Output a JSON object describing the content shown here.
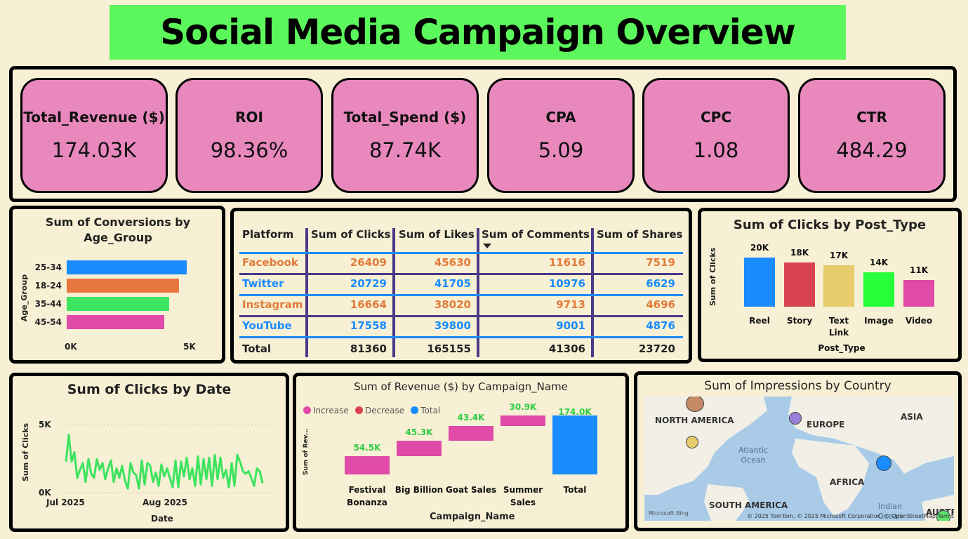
{
  "title": "Social Media Campaign Overview",
  "kpis": [
    {
      "label": "Total_Revenue ($)",
      "value": "174.03K"
    },
    {
      "label": "ROI",
      "value": "98.36%"
    },
    {
      "label": "Total_Spend ($)",
      "value": "87.74K"
    },
    {
      "label": "CPA",
      "value": "5.09"
    },
    {
      "label": "CPC",
      "value": "1.08"
    },
    {
      "label": "CTR",
      "value": "484.29"
    }
  ],
  "age_chart": {
    "title": "Sum of Conversions by Age_Group",
    "ylabel": "Age_Group",
    "ticks": [
      "0K",
      "5K"
    ]
  },
  "platform_table": {
    "headers": [
      "Platform",
      "Sum of Clicks",
      "Sum of Likes",
      "Sum of Comments",
      "Sum of Shares"
    ],
    "rows": [
      [
        "Facebook",
        "26409",
        "45630",
        "11616",
        "7519"
      ],
      [
        "Twitter",
        "20729",
        "41705",
        "10976",
        "6629"
      ],
      [
        "Instagram",
        "16664",
        "38020",
        "9713",
        "4696"
      ],
      [
        "YouTube",
        "17558",
        "39800",
        "9001",
        "4876"
      ]
    ],
    "total": [
      "Total",
      "81360",
      "165155",
      "41306",
      "23720"
    ],
    "row_colors": [
      "#e07b39",
      "#1a8cff",
      "#e07b39",
      "#1a8cff"
    ]
  },
  "post_chart": {
    "title": "Sum of Clicks by Post_Type",
    "ylabel": "Sum of Clicks",
    "xlabel": "Post_Type",
    "value_labels": [
      "20K",
      "18K",
      "17K",
      "14K",
      "11K"
    ],
    "cat_labels": [
      "Reel",
      "Story",
      "Text Link",
      "Image",
      "Video"
    ]
  },
  "date_chart": {
    "title": "Sum of Clicks by Date",
    "ylabel": "Sum of Clicks",
    "xlabel": "Date",
    "y_ticks": [
      "5K",
      "0K"
    ],
    "x_ticks": [
      "Jul 2025",
      "Aug 2025"
    ]
  },
  "waterfall_chart": {
    "title": "Sum of Revenue ($) by Campaign_Name",
    "ylabel": "Sum of Rev...",
    "xlabel": "Campaign_Name",
    "legend": [
      {
        "label": "Increase",
        "color": "#e04aa8"
      },
      {
        "label": "Decrease",
        "color": "#d9434f"
      },
      {
        "label": "Total",
        "color": "#1a8cff"
      }
    ],
    "value_labels": [
      "54.5K",
      "45.3K",
      "43.4K",
      "30.9K",
      "174.0K"
    ],
    "cat_labels": [
      "Festival Bonanza",
      "Big Billion",
      "Goat Sales",
      "Summer Sales",
      "Total"
    ]
  },
  "map": {
    "title": "Sum of Impressions by Country",
    "regions": [
      "NORTH AMERICA",
      "EUROPE",
      "ASIA",
      "AFRICA",
      "SOUTH AMERICA",
      "AUSTR"
    ],
    "oceans": [
      "Atlantic Ocean",
      "Indian Ocean"
    ],
    "bing": "Microsoft Bing",
    "credit": "© 2025 TomTom, © 2025 Microsoft Corporation, © OpenStreetMap  Terms"
  },
  "chart_data": [
    {
      "type": "bar",
      "orientation": "horizontal",
      "title": "Sum of Conversions by Age_Group",
      "ylabel": "Age_Group",
      "categories": [
        "25-34",
        "18-24",
        "35-44",
        "45-54"
      ],
      "values": [
        4900,
        4600,
        4200,
        4000
      ],
      "colors": [
        "#1a8cff",
        "#e8773f",
        "#3ee35f",
        "#e04aa8"
      ],
      "xlim": [
        0,
        5000
      ]
    },
    {
      "type": "bar",
      "title": "Sum of Clicks by Post_Type",
      "xlabel": "Post_Type",
      "ylabel": "Sum of Clicks",
      "categories": [
        "Reel",
        "Story",
        "Text Link",
        "Image",
        "Video"
      ],
      "values": [
        20000,
        18000,
        17000,
        14000,
        11000
      ],
      "colors": [
        "#1a8cff",
        "#d9434f",
        "#e6cc6a",
        "#27ff3a",
        "#e04aa8"
      ]
    },
    {
      "type": "line",
      "title": "Sum of Clicks by Date",
      "xlabel": "Date",
      "ylabel": "Sum of Clicks",
      "x_range": [
        "Jul 2025",
        "Aug 2025"
      ],
      "ylim": [
        0,
        5000
      ],
      "color": "#3ee35f",
      "values": [
        2300,
        4300,
        2300,
        3000,
        1100,
        1700,
        2200,
        800,
        2500,
        1400,
        1100,
        2500,
        1700,
        2200,
        1000,
        1800,
        2400,
        800,
        1800,
        1100,
        2000,
        900,
        300,
        2200,
        1500,
        1300,
        300,
        2400,
        600,
        2200,
        2000,
        800,
        1500,
        500,
        2100,
        1200,
        1800,
        1100,
        400,
        2400,
        400,
        2300,
        1200,
        2600,
        1000,
        1800,
        500,
        2700,
        600,
        2500,
        1000,
        2600,
        500,
        2800,
        1000,
        2600,
        1100,
        1700,
        400,
        2200,
        500,
        2800,
        2300,
        1600,
        1400,
        1600,
        1100,
        500,
        1800,
        1600,
        700
      ]
    },
    {
      "type": "bar",
      "subtype": "waterfall",
      "title": "Sum of Revenue ($) by Campaign_Name",
      "xlabel": "Campaign_Name",
      "ylabel": "Sum of Rev...",
      "categories": [
        "Festival Bonanza",
        "Big Billion",
        "Goat Sales",
        "Summer Sales",
        "Total"
      ],
      "values": [
        54500,
        45300,
        43400,
        30900,
        174000
      ]
    }
  ]
}
